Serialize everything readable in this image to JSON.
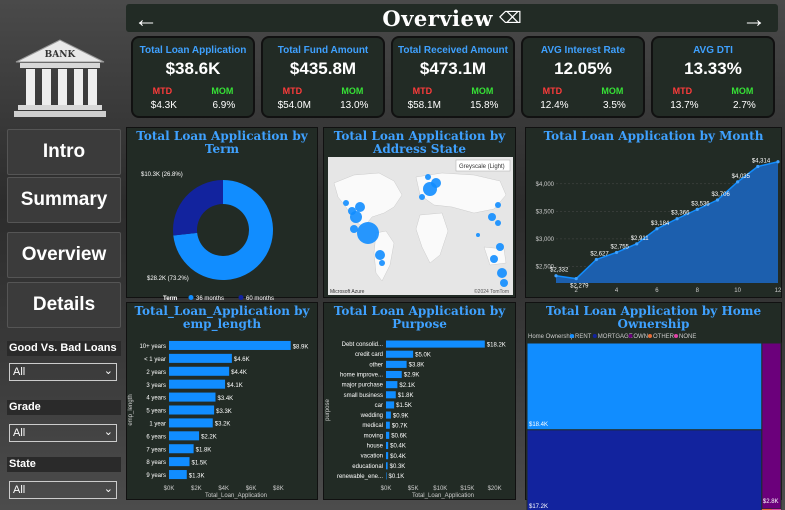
{
  "header": {
    "title": "Overview",
    "back_arrow": "←",
    "forward_arrow": "→",
    "eraser": "⌫"
  },
  "logo": {
    "text": "BANK"
  },
  "nav": {
    "intro": "Intro",
    "summary": "Summary",
    "overview": "Overview",
    "details": "Details"
  },
  "filters": [
    {
      "label": "Good Vs. Bad Loans",
      "value": "All"
    },
    {
      "label": "Grade",
      "value": "All"
    },
    {
      "label": "State",
      "value": "All"
    }
  ],
  "kpis": [
    {
      "title": "Total Loan Application",
      "value": "$38.6K",
      "mtd_label": "MTD",
      "mom_label": "MOM",
      "mtd": "$4.3K",
      "mom": "6.9%"
    },
    {
      "title": "Total Fund Amount",
      "value": "$435.8M",
      "mtd_label": "MTD",
      "mom_label": "MOM",
      "mtd": "$54.0M",
      "mom": "13.0%"
    },
    {
      "title": "Total Received Amount",
      "value": "$473.1M",
      "mtd_label": "MTD",
      "mom_label": "MOM",
      "mtd": "$58.1M",
      "mom": "15.8%"
    },
    {
      "title": "AVG Interest Rate",
      "value": "12.05%",
      "mtd_label": "MTD",
      "mom_label": "MOM",
      "mtd": "12.4%",
      "mom": "3.5%"
    },
    {
      "title": "AVG DTI",
      "value": "13.33%",
      "mtd_label": "MTD",
      "mom_label": "MOM",
      "mtd": "13.7%",
      "mom": "2.7%"
    }
  ],
  "panels": {
    "term": {
      "title": "Total Loan Application by Term"
    },
    "state": {
      "title": "Total Loan Application by Address State",
      "map_style": "Greyscale (Light)",
      "attribution": "Microsoft Azure",
      "copyright": "©2024 TomTom"
    },
    "month": {
      "title": "Total Loan Application by Month"
    },
    "emp": {
      "title": "Total_Loan_Application by emp_length"
    },
    "purpose": {
      "title": "Total Loan Application by Purpose"
    },
    "ownership": {
      "title": "Total Loan Application by Home Ownership"
    }
  },
  "chart_data": [
    {
      "type": "pie",
      "variant": "donut",
      "legend_title": "Term",
      "categories": [
        "36 months",
        "60 months"
      ],
      "values": [
        28.2,
        10.3
      ],
      "labels": [
        "$28.2K (73.2%)",
        "$10.3K (26.8%)"
      ],
      "colors": [
        "#118dff",
        "#12239e"
      ]
    },
    {
      "type": "area",
      "x": [
        1,
        2,
        3,
        4,
        5,
        6,
        7,
        8,
        9,
        10,
        11,
        12
      ],
      "y": [
        2332,
        2279,
        2627,
        2755,
        2911,
        3184,
        3366,
        3536,
        3706,
        4035,
        4314,
        4400
      ],
      "labels": [
        "$2,332",
        "$2,279",
        "$2,627",
        "$2,755",
        "$2,911",
        "$3,184",
        "$3,366",
        "$3,536",
        "$3,706",
        "$4,035",
        "$4,314",
        ""
      ],
      "y_ticks": [
        "$2,500",
        "$3,000",
        "$3,500",
        "$4,000"
      ],
      "x_ticks": [
        "2",
        "4",
        "6",
        "8",
        "10",
        "12"
      ],
      "xlim": [
        1,
        12
      ],
      "ylim": [
        2200,
        4450
      ],
      "color": "#118dff"
    },
    {
      "type": "bar",
      "orientation": "horizontal",
      "categories": [
        "10+ years",
        "< 1 year",
        "2 years",
        "3 years",
        "4 years",
        "5 years",
        "1 year",
        "6 years",
        "7 years",
        "8 years",
        "9 years"
      ],
      "values": [
        8.9,
        4.6,
        4.4,
        4.1,
        3.4,
        3.3,
        3.2,
        2.2,
        1.8,
        1.5,
        1.3
      ],
      "labels": [
        "$8.9K",
        "$4.6K",
        "$4.4K",
        "$4.1K",
        "$3.4K",
        "$3.3K",
        "$3.2K",
        "$2.2K",
        "$1.8K",
        "$1.5K",
        "$1.3K"
      ],
      "x_ticks": [
        "$0K",
        "$2K",
        "$4K",
        "$6K",
        "$8K"
      ],
      "xlabel": "Total_Loan_Application",
      "ylabel": "emp_length",
      "xlim": [
        0,
        9.8
      ],
      "color": "#118dff"
    },
    {
      "type": "bar",
      "orientation": "horizontal",
      "categories": [
        "Debt consolid...",
        "credit card",
        "other",
        "home improve...",
        "major purchase",
        "small business",
        "car",
        "wedding",
        "medical",
        "moving",
        "house",
        "vacation",
        "educational",
        "renewable_ene..."
      ],
      "values": [
        18.2,
        5.0,
        3.8,
        2.9,
        2.1,
        1.8,
        1.5,
        0.9,
        0.7,
        0.6,
        0.4,
        0.4,
        0.3,
        0.1
      ],
      "labels": [
        "$18.2K",
        "$5.0K",
        "$3.8K",
        "$2.9K",
        "$2.1K",
        "$1.8K",
        "$1.5K",
        "$0.9K",
        "$0.7K",
        "$0.6K",
        "$0.4K",
        "$0.4K",
        "$0.3K",
        "$0.1K"
      ],
      "x_ticks": [
        "$0K",
        "$5K",
        "$10K",
        "$15K",
        "$20K"
      ],
      "xlabel": "Total_Loan_Application",
      "ylabel": "purpose",
      "xlim": [
        0,
        21
      ],
      "color": "#118dff"
    },
    {
      "type": "treemap",
      "legend_title": "Home Ownership",
      "categories": [
        "RENT",
        "MORTGAGE",
        "OWN",
        "OTHER",
        "NONE"
      ],
      "values": [
        18.4,
        17.2,
        2.8,
        0.1,
        0.0
      ],
      "labels": [
        "$18.4K",
        "$17.2K",
        "$2.8K",
        "",
        ""
      ],
      "colors": [
        "#118dff",
        "#12239e",
        "#6b007b",
        "#e66c37",
        "#e044a7"
      ]
    }
  ]
}
